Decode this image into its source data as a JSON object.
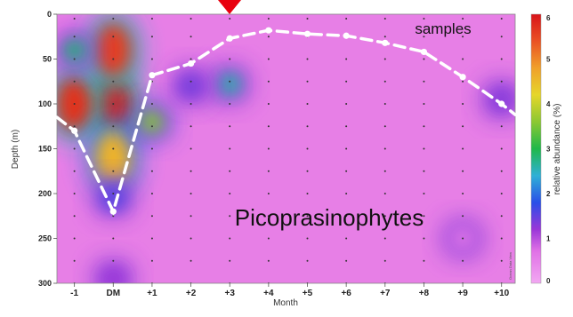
{
  "chart_data": {
    "type": "heatmap",
    "xlabel": "Month",
    "ylabel": "Depth (m)",
    "colorbar_label": "relative abundance (%)",
    "x_categories": [
      "-1",
      "DM",
      "+1",
      "+2",
      "+3",
      "+4",
      "+5",
      "+6",
      "+7",
      "+8",
      "+9",
      "+10"
    ],
    "y_ticks": [
      0,
      50,
      100,
      150,
      200,
      250,
      300
    ],
    "ylim": [
      300,
      0
    ],
    "colorbar_ticks": [
      0,
      1,
      2,
      3,
      4,
      5,
      6
    ],
    "colorbar_range": [
      0,
      6
    ],
    "sample_depths": [
      5,
      25,
      50,
      75,
      100,
      125,
      150,
      175,
      200,
      225,
      250,
      275,
      300
    ],
    "mixed_layer_depth": {
      "months": [
        "-1",
        "DM",
        "+1",
        "+2",
        "+3",
        "+4",
        "+5",
        "+6",
        "+7",
        "+8",
        "+9",
        "+10"
      ],
      "depth_m": [
        130,
        220,
        68,
        55,
        27,
        18,
        22,
        24,
        32,
        42,
        70,
        100
      ]
    },
    "abundance_blobs": [
      {
        "month": "DM",
        "depth_m": 100,
        "value": 5.9
      },
      {
        "month": "-1",
        "depth_m": 100,
        "value": 5.7
      },
      {
        "month": "DM",
        "depth_m": 40,
        "value": 5.6
      },
      {
        "month": "DM",
        "depth_m": 160,
        "value": 4.6
      },
      {
        "month": "-1",
        "depth_m": 40,
        "value": 2.8
      },
      {
        "month": "+1",
        "depth_m": 120,
        "value": 3.6
      },
      {
        "month": "+3",
        "depth_m": 78,
        "value": 2.6
      },
      {
        "month": "+2",
        "depth_m": 80,
        "value": 1.4
      },
      {
        "month": "+10",
        "depth_m": 95,
        "value": 1.3
      },
      {
        "month": "DM",
        "depth_m": 205,
        "value": 1.6
      },
      {
        "month": "DM",
        "depth_m": 295,
        "value": 1.2
      },
      {
        "month": "+9",
        "depth_m": 250,
        "value": 0.6
      }
    ],
    "annotations": [
      "samples",
      "Picoprasinophytes"
    ]
  },
  "decoration": {
    "arrow_color": "#e8000e",
    "dash_color": "#ffffff"
  },
  "partial_texts": {
    "top_caption": "samples",
    "bottom_caption": "Month"
  }
}
